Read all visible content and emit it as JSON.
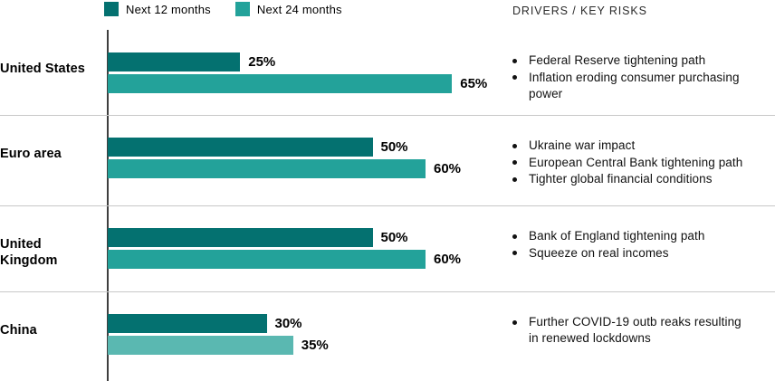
{
  "legend": {
    "items": [
      {
        "label": "Next 12 months",
        "color": "#047170"
      },
      {
        "label": "Next 24 months",
        "color": "#23A29A"
      }
    ]
  },
  "risks_header": "DRIVERS / KEY RISKS",
  "colors": {
    "series_next_12_months": "#047170",
    "series_next_24_months": "#23A29A",
    "china_next_24_months": "#5AB8B1",
    "axis": "#3f3f3f",
    "separator": "#c8c8c8"
  },
  "rows": [
    {
      "label": "United States",
      "bars": [
        {
          "series": "Next 12 months",
          "value": 25,
          "label": "25%",
          "color": "#047170"
        },
        {
          "series": "Next 24 months",
          "value": 65,
          "label": "65%",
          "color": "#23A29A"
        }
      ],
      "risks": [
        "Federal Reserve tightening path",
        "Inflation eroding consumer purchasing power"
      ]
    },
    {
      "label": "Euro area",
      "bars": [
        {
          "series": "Next 12 months",
          "value": 50,
          "label": "50%",
          "color": "#047170"
        },
        {
          "series": "Next 24 months",
          "value": 60,
          "label": "60%",
          "color": "#23A29A"
        }
      ],
      "risks": [
        "Ukraine war impact",
        "European Central Bank tightening path",
        "Tighter global financial conditions"
      ]
    },
    {
      "label": "United Kingdom",
      "bars": [
        {
          "series": "Next 12 months",
          "value": 50,
          "label": "50%",
          "color": "#047170"
        },
        {
          "series": "Next 24 months",
          "value": 60,
          "label": "60%",
          "color": "#23A29A"
        }
      ],
      "risks": [
        "Bank of England tightening path",
        "Squeeze on real incomes"
      ]
    },
    {
      "label": "China",
      "bars": [
        {
          "series": "Next 12 months",
          "value": 30,
          "label": "30%",
          "color": "#047170"
        },
        {
          "series": "Next 24 months",
          "value": 35,
          "label": "35%",
          "color": "#5AB8B1"
        }
      ],
      "risks": [
        "Further COVID-19 outb reaks resulting in renewed lockdowns"
      ]
    }
  ],
  "chart_data": {
    "type": "bar",
    "orientation": "horizontal",
    "title": "",
    "categories": [
      "United States",
      "Euro area",
      "United Kingdom",
      "China"
    ],
    "series": [
      {
        "name": "Next 12 months",
        "values": [
          25,
          50,
          50,
          30
        ]
      },
      {
        "name": "Next 24 months",
        "values": [
          65,
          60,
          60,
          35
        ]
      }
    ],
    "unit": "%",
    "value_labels": [
      [
        "25%",
        "65%"
      ],
      [
        "50%",
        "60%"
      ],
      [
        "50%",
        "60%"
      ],
      [
        "30%",
        "35%"
      ]
    ],
    "xlim": [
      0,
      68
    ],
    "grid": false,
    "legend_position": "top",
    "annotations_header": "DRIVERS / KEY RISKS",
    "annotations": [
      [
        "Federal Reserve tightening path",
        "Inflation eroding consumer purchasing power"
      ],
      [
        "Ukraine war impact",
        "European Central Bank tightening path",
        "Tighter global financial conditions"
      ],
      [
        "Bank of England tightening path",
        "Squeeze on real incomes"
      ],
      [
        "Further COVID-19 outb reaks resulting in renewed lockdowns"
      ]
    ]
  }
}
